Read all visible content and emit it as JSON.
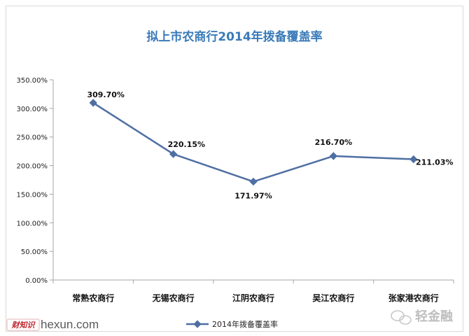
{
  "chart_data": {
    "type": "line",
    "title": "拟上市农商行2014年拨备覆盖率",
    "categories": [
      "常熟农商行",
      "无锡农商行",
      "江阴农商行",
      "吴江农商行",
      "张家港农商行"
    ],
    "series": [
      {
        "name": "2014年拨备覆盖率",
        "values": [
          309.7,
          220.15,
          171.97,
          216.7,
          211.03
        ],
        "labels": [
          "309.70%",
          "220.15%",
          "171.97%",
          "216.70%",
          "211.03%"
        ],
        "color": "#4f6fa3"
      }
    ],
    "yticks": [
      "0.00%",
      "50.00%",
      "100.00%",
      "150.00%",
      "200.00%",
      "250.00%",
      "300.00%",
      "350.00%"
    ],
    "ylim": [
      0,
      350
    ],
    "grid": false,
    "legend_position": "bottom"
  },
  "watermarks": {
    "left_logo": "财知识",
    "hexun": "hexun.com",
    "right_logo": "轻金融"
  },
  "colors": {
    "title": "#3a7bb8",
    "axis": "#a6a6a6",
    "line": "#4f6fa3"
  }
}
